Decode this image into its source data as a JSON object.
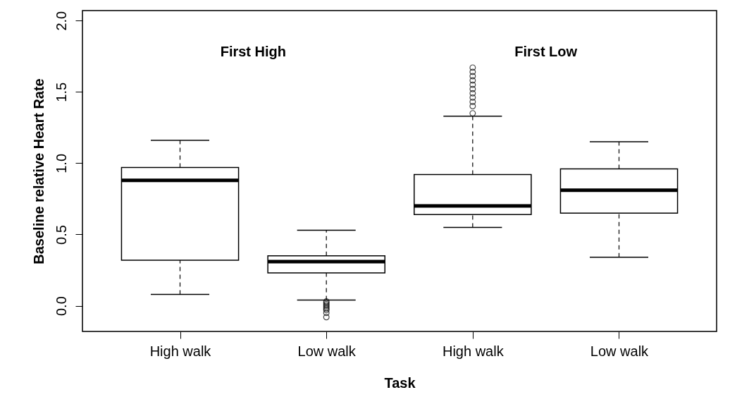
{
  "chart_data": {
    "type": "box",
    "xlabel": "Task",
    "ylabel": "Baseline relative Heart Rate",
    "categories": [
      "High walk",
      "Low walk",
      "High walk",
      "Low walk"
    ],
    "boxes": [
      {
        "low": 0.08,
        "q1": 0.32,
        "median": 0.88,
        "q3": 0.97,
        "high": 1.16
      },
      {
        "low": 0.04,
        "q1": 0.23,
        "median": 0.31,
        "q3": 0.35,
        "high": 0.53,
        "outliers": [
          0.03,
          0.02,
          0.01,
          0.0,
          -0.01,
          -0.02,
          -0.03,
          -0.05,
          -0.08
        ]
      },
      {
        "low": 0.55,
        "q1": 0.64,
        "median": 0.7,
        "q3": 0.92,
        "high": 1.33,
        "outliers": [
          1.35,
          1.4,
          1.43,
          1.46,
          1.49,
          1.52,
          1.55,
          1.58,
          1.61,
          1.64,
          1.67
        ]
      },
      {
        "low": 0.34,
        "q1": 0.65,
        "median": 0.81,
        "q3": 0.96,
        "high": 1.15
      }
    ],
    "annotations": [
      "First High",
      "First Low"
    ],
    "ylim": [
      -0.18,
      2.07
    ],
    "yticks": [
      {
        "value": 0,
        "label": "0.0"
      },
      {
        "value": 0.5,
        "label": "0.5"
      },
      {
        "value": 1,
        "label": "1.0"
      },
      {
        "value": 1.5,
        "label": "1.5"
      },
      {
        "value": 2,
        "label": "2.0"
      }
    ],
    "grid": false
  }
}
